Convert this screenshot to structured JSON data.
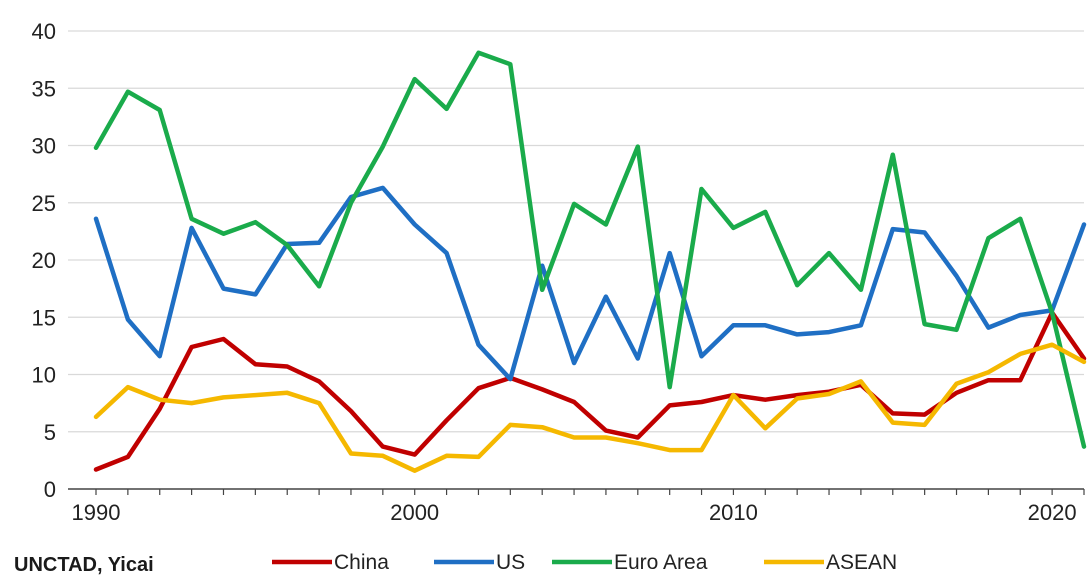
{
  "source": "UNCTAD, Yicai",
  "chart_data": {
    "type": "line",
    "title": "",
    "xlabel": "",
    "ylabel": "",
    "xlim": [
      1990,
      2021
    ],
    "ylim": [
      0,
      40
    ],
    "yticks": [
      0,
      5,
      10,
      15,
      20,
      25,
      30,
      35,
      40
    ],
    "xticks": [
      1990,
      2000,
      2010,
      2020
    ],
    "grid": "horizontal",
    "legend_position": "bottom",
    "x": [
      1990,
      1991,
      1992,
      1993,
      1994,
      1995,
      1996,
      1997,
      1998,
      1999,
      2000,
      2001,
      2002,
      2003,
      2004,
      2005,
      2006,
      2007,
      2008,
      2009,
      2010,
      2011,
      2012,
      2013,
      2014,
      2015,
      2016,
      2017,
      2018,
      2019,
      2020,
      2021
    ],
    "series": [
      {
        "name": "China",
        "color": "#c00000",
        "values": [
          1.7,
          2.8,
          7.0,
          12.4,
          13.1,
          10.9,
          10.7,
          9.4,
          6.8,
          3.7,
          3.0,
          6.0,
          8.8,
          9.7,
          8.7,
          7.6,
          5.1,
          4.5,
          7.3,
          7.6,
          8.2,
          7.8,
          8.2,
          8.5,
          9.1,
          6.6,
          6.5,
          8.4,
          9.5,
          9.5,
          15.4,
          11.4
        ]
      },
      {
        "name": "US",
        "color": "#1f6fc4",
        "values": [
          23.6,
          14.8,
          11.6,
          22.8,
          17.5,
          17.0,
          21.4,
          21.5,
          25.5,
          26.3,
          23.1,
          20.6,
          12.6,
          9.6,
          19.5,
          11.0,
          16.8,
          11.4,
          20.6,
          11.6,
          14.3,
          14.3,
          13.5,
          13.7,
          14.3,
          22.7,
          22.4,
          18.6,
          14.1,
          15.2,
          15.6,
          23.1
        ]
      },
      {
        "name": "Euro Area",
        "color": "#1aab4b",
        "values": [
          29.8,
          34.7,
          33.1,
          23.6,
          22.3,
          23.3,
          21.3,
          17.7,
          25.0,
          29.9,
          35.8,
          33.2,
          38.1,
          37.1,
          17.4,
          24.9,
          23.1,
          29.9,
          8.9,
          26.2,
          22.8,
          24.2,
          17.8,
          20.6,
          17.4,
          29.2,
          14.4,
          13.9,
          21.9,
          23.6,
          15.4,
          3.7
        ]
      },
      {
        "name": "ASEAN",
        "color": "#f5b800",
        "values": [
          6.3,
          8.9,
          7.8,
          7.5,
          8.0,
          8.2,
          8.4,
          7.5,
          3.1,
          2.9,
          1.6,
          2.9,
          2.8,
          5.6,
          5.4,
          4.5,
          4.5,
          4.0,
          3.4,
          3.4,
          8.2,
          5.3,
          7.9,
          8.3,
          9.4,
          5.8,
          5.6,
          9.2,
          10.2,
          11.8,
          12.6,
          11.1
        ]
      }
    ]
  }
}
